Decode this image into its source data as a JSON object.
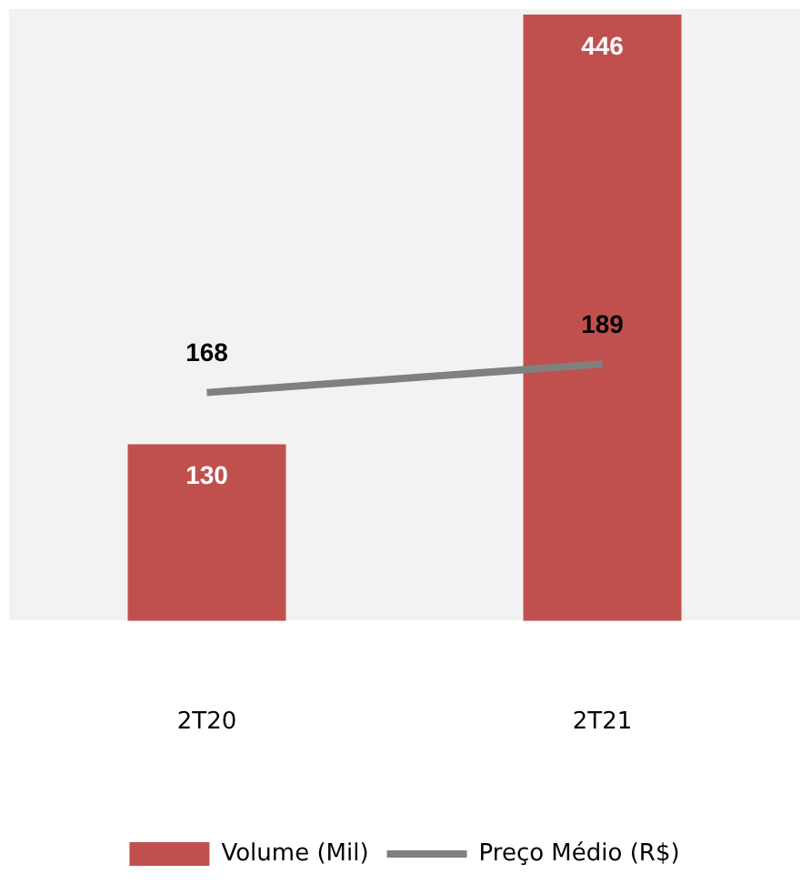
{
  "chart_data": {
    "type": "bar",
    "categories": [
      "2T20",
      "2T21"
    ],
    "series": [
      {
        "name": "Volume (Mil)",
        "type": "bar",
        "color": "#c0504d",
        "values": [
          130,
          446
        ]
      },
      {
        "name": "Preço Médio (R$)",
        "type": "line",
        "color": "#808080",
        "values": [
          168,
          189
        ]
      }
    ],
    "tick_labels": "x",
    "data_labels": true,
    "grid": false,
    "legend": "bottom",
    "marker": "none",
    "line_style": "solid"
  }
}
